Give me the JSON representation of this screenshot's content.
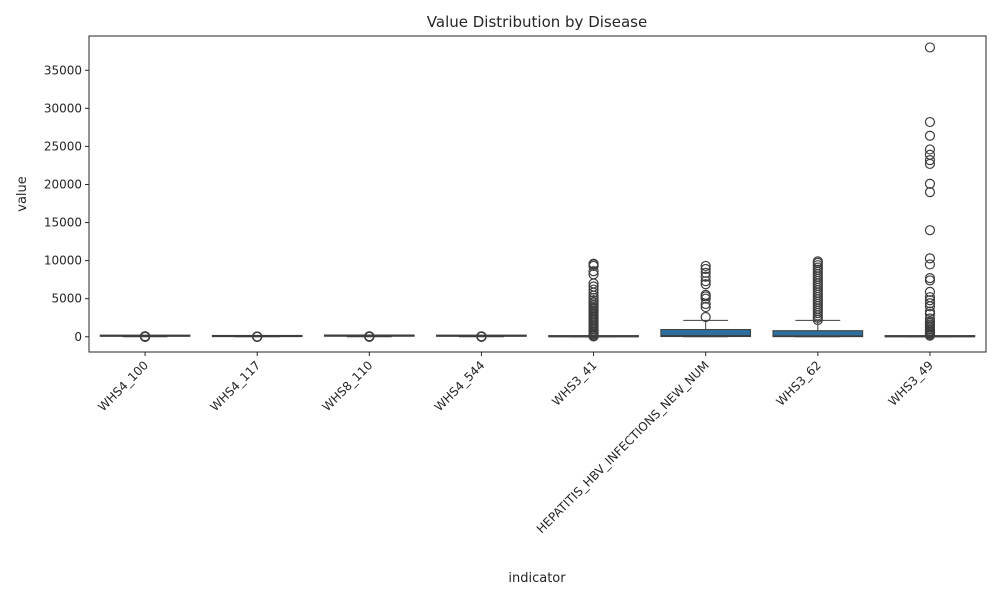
{
  "chart_data": {
    "type": "box",
    "title": "Value Distribution by Disease",
    "xlabel": "indicator",
    "ylabel": "value",
    "ylim": [
      -2000,
      39500
    ],
    "yticks": [
      0,
      5000,
      10000,
      15000,
      20000,
      25000,
      30000,
      35000
    ],
    "box_color": "#2e6e9e",
    "categories": [
      "WHS4_100",
      "WHS4_117",
      "WHS8_110",
      "WHS4_544",
      "WHS3_41",
      "HEPATITIS_HBV_INFECTIONS_NEW_NUM",
      "WHS3_62",
      "WHS3_49"
    ],
    "boxes": [
      {
        "min": 0,
        "q1": 60,
        "median": 90,
        "q3": 97,
        "max": 100,
        "outliers": [
          0,
          5,
          10,
          15,
          20,
          25,
          30,
          35,
          40,
          45,
          50,
          55
        ]
      },
      {
        "min": 0,
        "q1": 20,
        "median": 70,
        "q3": 96,
        "max": 100,
        "outliers": [
          0,
          5,
          10,
          15,
          20
        ]
      },
      {
        "min": 0,
        "q1": 75,
        "median": 92,
        "q3": 98,
        "max": 100,
        "outliers": [
          0,
          10,
          20,
          30,
          40,
          50,
          60
        ]
      },
      {
        "min": 0,
        "q1": 60,
        "median": 88,
        "q3": 96,
        "max": 100,
        "outliers": [
          0,
          10,
          20,
          30,
          40,
          50
        ]
      },
      {
        "min": 0,
        "q1": 0,
        "median": 2,
        "q3": 12,
        "max": 30,
        "outliers": [
          50,
          150,
          300,
          450,
          600,
          800,
          1000,
          1200,
          1400,
          1600,
          1800,
          2000,
          2200,
          2400,
          2600,
          2800,
          3000,
          3200,
          3400,
          3600,
          3800,
          4000,
          4200,
          4500,
          4800,
          5100,
          5400,
          5800,
          6200,
          6600,
          7000,
          8200,
          8600,
          9300,
          9500,
          9600
        ]
      },
      {
        "min": 0,
        "q1": 30,
        "median": 150,
        "q3": 950,
        "max": 2150,
        "outliers": [
          2600,
          3900,
          4300,
          5000,
          5300,
          5500,
          6900,
          7300,
          7900,
          8400,
          8900,
          9300
        ]
      },
      {
        "min": 0,
        "q1": 15,
        "median": 120,
        "q3": 800,
        "max": 2150,
        "outliers": [
          2200,
          2500,
          2800,
          3100,
          3400,
          3700,
          4000,
          4300,
          4600,
          4900,
          5200,
          5500,
          5800,
          6100,
          6400,
          6700,
          7000,
          7300,
          7600,
          7900,
          8200,
          8500,
          8800,
          9100,
          9400,
          9700,
          9900
        ]
      },
      {
        "min": 0,
        "q1": 0,
        "median": 5,
        "q3": 40,
        "max": 100,
        "outliers": [
          150,
          300,
          450,
          600,
          800,
          1000,
          1200,
          1400,
          1600,
          1800,
          2000,
          2400,
          3000,
          3300,
          4000,
          4400,
          4800,
          5200,
          5900,
          7400,
          7700,
          9500,
          10300,
          14000,
          19000,
          20100,
          22700,
          23200,
          23900,
          24600,
          26400,
          28200,
          38000
        ]
      }
    ]
  }
}
